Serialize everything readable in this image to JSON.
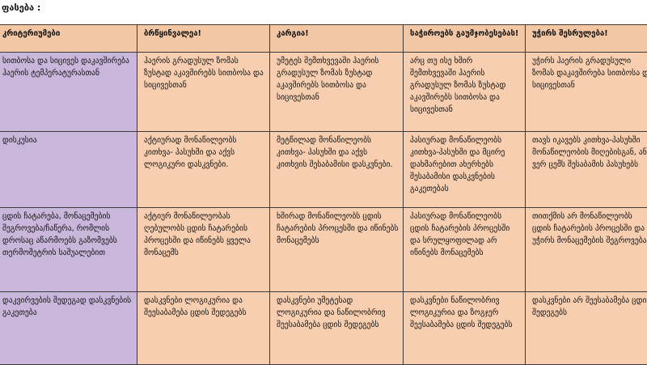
{
  "caption": "ფასება :",
  "table": {
    "headers": [
      "კრიტერიუმები",
      "ბრწყინვალეა!",
      "კარგია!",
      "საჭიროებს გაუმჯობესებას!",
      "უჭირს შესრულება!"
    ],
    "rows": [
      {
        "criterion": "სითბოსა და სიცივეს დაკავშირება ჰაერის ტემპერატურასთან",
        "cells": [
          "ჰაერის გრადუსულ ზომას ზუსტად აკავშირებს სითბოსა და სიცივესთან",
          "უმეტეს შემთხვევაში ჰაერის გრადუსულ ზომას ზუსტად აკავშირებს სითბოსა და სიცივესთან",
          "არც თუ ისე ხშირ შემთხვევაში ჰაერის გრადუსულ ზომას ზუსტად აკავშირებს სითბოსა და სიცივესთან",
          "უჭირს ჰაერის გრადუსული ზომას დაკავშირება სითბოსა და სიცივესთან"
        ]
      },
      {
        "criterion": "დისკუსია",
        "cells": [
          "აქტიურად მონაწილეობს კითხვა- პასუხში და აქვს ლოგიკური დასკვნები.",
          "მეტწილად მონაწილეობს კითხვა- პასუხში და აქვს კითხვის შესაბამისი დასკვნები.",
          "პასიურად მონაწილეობს კითხვა-პასუხში და მცირე დახმარებით ახერხებს შესაბამისი დასკვნების გაკეთებას",
          "თავს იკავებს კითხვა-პასუხში მონაწილეობის მიღებისგან, ან ვერ ცემს შესაბამის პასუხებს"
        ]
      },
      {
        "criterion": "ცდის ჩატარება, მონაცემების შეგროვება/ჩაწერა, რომლის დროსაც აწარმოებს გაზომვებს თერმომეტრის საშუალებით",
        "cells": [
          "აქტიურ მონაწილეობას ღებულობს ცდის ჩატარების პროცესში და იწინებს ყველა მონაცემს",
          "ხშირად მონაწილეობს ცდის ჩატარების პროცესში და იწინებს მონაცემებს",
          "პასიურად მონაწილეობს ცდის ჩატარების პროცესში და სრულყოფილად არ იწინებს მონაცემებს",
          "თითქმის არ მონაწილეობს ცდის ჩატარების პროცესში და უჭირს მონაცემების შეგროვება"
        ]
      },
      {
        "criterion": "დაკვირვების შედეგად დასკვნების გაკეთება",
        "cells": [
          "დასკვნები ლოგიკურია და შეესაბამება ცდის შედეგებს",
          "დასკვნები უმეტესად ლოგიკურია და ნაწილობრივ შეესაბამება ცდის შედეგებს",
          "დასკვნები ნაწილობრივ ლოგიკურია და ზოგჯერ შეესაბამება ცდის შედეგებს",
          "დასკვნები არ შეესაბამება ცდის შედეგებს"
        ]
      }
    ]
  }
}
